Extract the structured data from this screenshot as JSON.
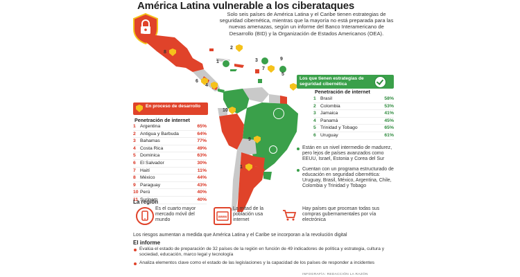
{
  "title": "América Latina vulnerable a los ciberataques",
  "intro": "Solo seis países de América Latina y el Caribe tienen estrategias de seguridad cibernética, mientras que la mayoría no está preparada para las nuevas amenazas, según un informe del Banco Interamericano de Desarrollo (BID) y la Organización de Estados Americanos (OEA).",
  "colors": {
    "red": "#e0432a",
    "green": "#3aa04a",
    "yellow": "#f5c21b",
    "land": "#c9c9c9"
  },
  "green_legend": {
    "label": "Los que tienen estrategias de seguridad cibernética",
    "penetration_title": "Penetración de internet",
    "rows": [
      {
        "n": "1",
        "country": "Brasil",
        "value": "58%"
      },
      {
        "n": "2",
        "country": "Colombia",
        "value": "53%"
      },
      {
        "n": "3",
        "country": "Jamaica",
        "value": "41%"
      },
      {
        "n": "4",
        "country": "Panamá",
        "value": "45%"
      },
      {
        "n": "5",
        "country": "Trinidad y Tobago",
        "value": "65%"
      },
      {
        "n": "6",
        "country": "Uruguay",
        "value": "61%"
      }
    ]
  },
  "red_legend": {
    "label": "En proceso de desarrollo",
    "penetration_title": "Penetración de internet",
    "rows": [
      {
        "n": "1",
        "country": "Argentina",
        "value": "65%"
      },
      {
        "n": "2",
        "country": "Antigua y Barbuda",
        "value": "64%"
      },
      {
        "n": "3",
        "country": "Bahamas",
        "value": "77%"
      },
      {
        "n": "4",
        "country": "Costa Rica",
        "value": "49%"
      },
      {
        "n": "5",
        "country": "Dominica",
        "value": "63%"
      },
      {
        "n": "6",
        "country": "El Salvador",
        "value": "30%"
      },
      {
        "n": "7",
        "country": "Haití",
        "value": "11%"
      },
      {
        "n": "8",
        "country": "México",
        "value": "44%"
      },
      {
        "n": "9",
        "country": "Paraguay",
        "value": "43%"
      },
      {
        "n": "10",
        "country": "Perú",
        "value": "40%"
      },
      {
        "n": "11",
        "country": "Surinam",
        "value": "40%"
      }
    ]
  },
  "bullets": [
    "Están en un nivel intermedio de madurez, pero lejos de países avanzados como EEUU, Israel, Estonia y Corea del Sur",
    "Cuentan con un programa estructurado de educación en seguridad cibernética: Uruguay, Brasil, México, Argentina, Chile, Colombia y Trinidad y Tobago"
  ],
  "region": {
    "title": "La región",
    "items": [
      {
        "icon": "phone-icon",
        "text": "Es el cuarto mayor mercado móvil del mundo"
      },
      {
        "icon": "www-icon",
        "text": "La mitad de la población usa internet"
      },
      {
        "icon": "cart-icon",
        "text": "Hay países que procesan todas sus compras gubernamentales por vía electrónica"
      }
    ]
  },
  "risk_text": "Los riesgos aumentan a medida que América Latina y el Caribe se incorporan a la revolución digital",
  "informe": {
    "title": "El informe",
    "items": [
      "Evalúa el estado de preparación de 32 países de la región en función de 49 indicadores de política y estrategia, cultura y sociedad, educación, marco legal y tecnología",
      "Analiza elementos clave como el estado de las legislaciones y la capacidad de los países de responder a incidentes"
    ]
  },
  "credit": "INFOGRAFÍA: REDACCIÓN LA RAZÓN",
  "map_numbers": [
    "8",
    "6",
    "4",
    "1",
    "2",
    "3",
    "7",
    "9",
    "5",
    "10",
    "11",
    "9",
    "1"
  ]
}
